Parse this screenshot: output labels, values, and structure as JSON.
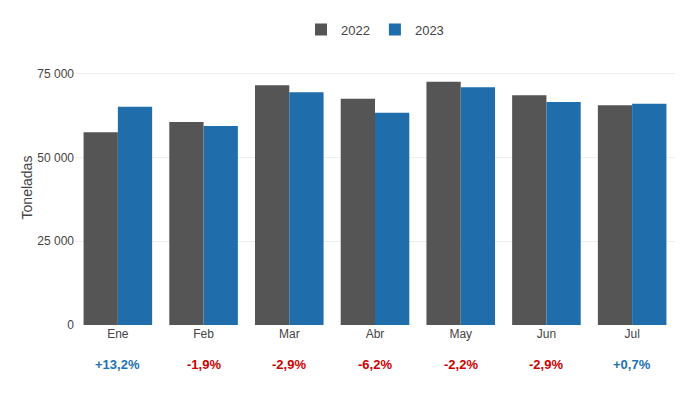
{
  "chart_data": {
    "type": "bar",
    "categories": [
      "Ene",
      "Feb",
      "Mar",
      "Abr",
      "May",
      "Jun",
      "Jul"
    ],
    "series": [
      {
        "name": "2022",
        "color": "#555555",
        "values": [
          57500,
          60500,
          71500,
          67500,
          72500,
          68500,
          65500
        ]
      },
      {
        "name": "2023",
        "color": "#1f6daa",
        "values": [
          65090,
          59355,
          69430,
          63285,
          70910,
          66510,
          65960
        ]
      }
    ],
    "ylabel": "Toneladas",
    "ylim": [
      0,
      82000
    ],
    "yticks": [
      0,
      {
        "value": 25000,
        "label": "25 000"
      },
      {
        "value": 50000,
        "label": "50 000"
      },
      {
        "value": 75000,
        "label": "75 000"
      }
    ],
    "grid": true,
    "legend": "top",
    "annotations": [
      {
        "category": "Ene",
        "text": "+13,2%",
        "color": "#2471b5"
      },
      {
        "category": "Feb",
        "text": "-1,9%",
        "color": "#cc0000"
      },
      {
        "category": "Mar",
        "text": "-2,9%",
        "color": "#cc0000"
      },
      {
        "category": "Abr",
        "text": "-6,2%",
        "color": "#cc0000"
      },
      {
        "category": "May",
        "text": "-2,2%",
        "color": "#cc0000"
      },
      {
        "category": "Jun",
        "text": "-2,9%",
        "color": "#cc0000"
      },
      {
        "category": "Jul",
        "text": "+0,7%",
        "color": "#2471b5"
      }
    ]
  }
}
